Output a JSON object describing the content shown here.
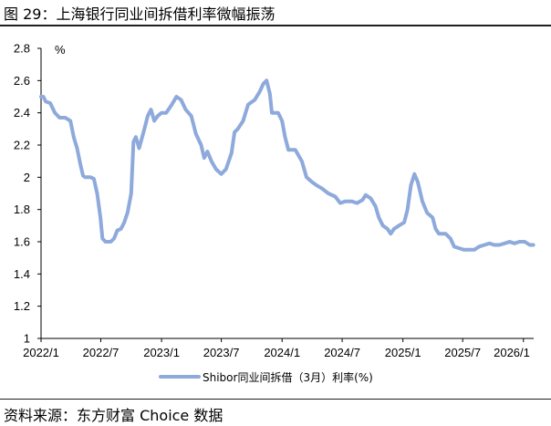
{
  "header": {
    "title": "图 29：上海银行同业间拆借利率微幅振荡"
  },
  "footer": {
    "source": "资料来源：东方财富 Choice 数据"
  },
  "colors": {
    "series": "#8ea9db",
    "axis": "#000000",
    "rule": "#1f1f1f"
  },
  "chart_data": {
    "type": "line",
    "title": "",
    "xlabel": "",
    "ylabel": "%",
    "ylim": [
      1,
      2.8
    ],
    "yticks": [
      "1",
      "1.2",
      "1.4",
      "1.6",
      "1.8",
      "2",
      "2.2",
      "2.4",
      "2.6",
      "2.8"
    ],
    "xlim": [
      "2022-01",
      "2026-02"
    ],
    "xticks": [
      {
        "label": "2022/1",
        "x": "2022-01"
      },
      {
        "label": "2022/7",
        "x": "2022-07"
      },
      {
        "label": "2023/1",
        "x": "2023-01"
      },
      {
        "label": "2023/7",
        "x": "2023-07"
      },
      {
        "label": "2024/1",
        "x": "2024-01"
      },
      {
        "label": "2024/7",
        "x": "2024-07"
      },
      {
        "label": "2025/1",
        "x": "2025-01"
      },
      {
        "label": "2025/7",
        "x": "2025-07"
      },
      {
        "label": "2026/1",
        "x": "2026-01"
      }
    ],
    "grid": false,
    "legend": "bottom",
    "series": [
      {
        "name": "Shibor同业间拆借（3月）利率(%)",
        "points": [
          [
            "2022-01-01",
            2.5
          ],
          [
            "2022-01-08",
            2.5
          ],
          [
            "2022-01-15",
            2.47
          ],
          [
            "2022-01-29",
            2.46
          ],
          [
            "2022-02-12",
            2.4
          ],
          [
            "2022-02-26",
            2.37
          ],
          [
            "2022-03-15",
            2.37
          ],
          [
            "2022-03-31",
            2.35
          ],
          [
            "2022-04-10",
            2.25
          ],
          [
            "2022-04-20",
            2.18
          ],
          [
            "2022-04-30",
            2.08
          ],
          [
            "2022-05-08",
            2.01
          ],
          [
            "2022-05-15",
            2.0
          ],
          [
            "2022-05-31",
            2.0
          ],
          [
            "2022-06-10",
            1.99
          ],
          [
            "2022-06-20",
            1.9
          ],
          [
            "2022-06-30",
            1.75
          ],
          [
            "2022-07-06",
            1.62
          ],
          [
            "2022-07-15",
            1.6
          ],
          [
            "2022-07-31",
            1.6
          ],
          [
            "2022-08-10",
            1.62
          ],
          [
            "2022-08-20",
            1.67
          ],
          [
            "2022-08-31",
            1.68
          ],
          [
            "2022-09-10",
            1.72
          ],
          [
            "2022-09-20",
            1.78
          ],
          [
            "2022-10-01",
            1.9
          ],
          [
            "2022-10-08",
            2.22
          ],
          [
            "2022-10-15",
            2.25
          ],
          [
            "2022-10-25",
            2.18
          ],
          [
            "2022-11-10",
            2.3
          ],
          [
            "2022-11-20",
            2.38
          ],
          [
            "2022-11-30",
            2.42
          ],
          [
            "2022-12-10",
            2.35
          ],
          [
            "2022-12-20",
            2.38
          ],
          [
            "2023-01-01",
            2.4
          ],
          [
            "2023-01-15",
            2.4
          ],
          [
            "2023-02-01",
            2.45
          ],
          [
            "2023-02-15",
            2.5
          ],
          [
            "2023-03-01",
            2.48
          ],
          [
            "2023-03-15",
            2.42
          ],
          [
            "2023-04-01",
            2.38
          ],
          [
            "2023-04-15",
            2.27
          ],
          [
            "2023-05-01",
            2.2
          ],
          [
            "2023-05-10",
            2.12
          ],
          [
            "2023-05-20",
            2.16
          ],
          [
            "2023-06-01",
            2.1
          ],
          [
            "2023-06-15",
            2.05
          ],
          [
            "2023-07-01",
            2.02
          ],
          [
            "2023-07-15",
            2.05
          ],
          [
            "2023-08-01",
            2.15
          ],
          [
            "2023-08-10",
            2.28
          ],
          [
            "2023-08-20",
            2.3
          ],
          [
            "2023-09-05",
            2.35
          ],
          [
            "2023-09-20",
            2.45
          ],
          [
            "2023-10-10",
            2.48
          ],
          [
            "2023-10-25",
            2.53
          ],
          [
            "2023-11-05",
            2.58
          ],
          [
            "2023-11-15",
            2.6
          ],
          [
            "2023-11-25",
            2.52
          ],
          [
            "2023-12-01",
            2.4
          ],
          [
            "2023-12-20",
            2.4
          ],
          [
            "2024-01-01",
            2.35
          ],
          [
            "2024-01-10",
            2.25
          ],
          [
            "2024-01-20",
            2.17
          ],
          [
            "2024-02-10",
            2.17
          ],
          [
            "2024-03-01",
            2.1
          ],
          [
            "2024-03-15",
            2.0
          ],
          [
            "2024-04-01",
            1.97
          ],
          [
            "2024-04-15",
            1.95
          ],
          [
            "2024-05-01",
            1.93
          ],
          [
            "2024-05-20",
            1.9
          ],
          [
            "2024-06-10",
            1.88
          ],
          [
            "2024-06-25",
            1.84
          ],
          [
            "2024-07-10",
            1.85
          ],
          [
            "2024-07-31",
            1.85
          ],
          [
            "2024-08-15",
            1.84
          ],
          [
            "2024-09-01",
            1.86
          ],
          [
            "2024-09-10",
            1.89
          ],
          [
            "2024-09-25",
            1.87
          ],
          [
            "2024-10-10",
            1.82
          ],
          [
            "2024-10-20",
            1.75
          ],
          [
            "2024-11-01",
            1.7
          ],
          [
            "2024-11-15",
            1.68
          ],
          [
            "2024-11-25",
            1.65
          ],
          [
            "2024-12-05",
            1.68
          ],
          [
            "2024-12-20",
            1.7
          ],
          [
            "2025-01-05",
            1.72
          ],
          [
            "2025-01-15",
            1.8
          ],
          [
            "2025-01-25",
            1.95
          ],
          [
            "2025-02-05",
            2.02
          ],
          [
            "2025-02-15",
            1.97
          ],
          [
            "2025-03-01",
            1.85
          ],
          [
            "2025-03-15",
            1.78
          ],
          [
            "2025-04-01",
            1.75
          ],
          [
            "2025-04-10",
            1.68
          ],
          [
            "2025-04-20",
            1.65
          ],
          [
            "2025-05-10",
            1.65
          ],
          [
            "2025-05-25",
            1.62
          ],
          [
            "2025-06-05",
            1.57
          ],
          [
            "2025-06-20",
            1.56
          ],
          [
            "2025-07-05",
            1.55
          ],
          [
            "2025-07-20",
            1.55
          ],
          [
            "2025-08-05",
            1.55
          ],
          [
            "2025-08-20",
            1.57
          ],
          [
            "2025-09-05",
            1.58
          ],
          [
            "2025-09-20",
            1.59
          ],
          [
            "2025-10-05",
            1.58
          ],
          [
            "2025-10-20",
            1.58
          ],
          [
            "2025-11-05",
            1.59
          ],
          [
            "2025-11-20",
            1.6
          ],
          [
            "2025-12-05",
            1.59
          ],
          [
            "2025-12-20",
            1.6
          ],
          [
            "2026-01-05",
            1.6
          ],
          [
            "2026-01-20",
            1.58
          ],
          [
            "2026-01-31",
            1.58
          ]
        ]
      }
    ]
  }
}
